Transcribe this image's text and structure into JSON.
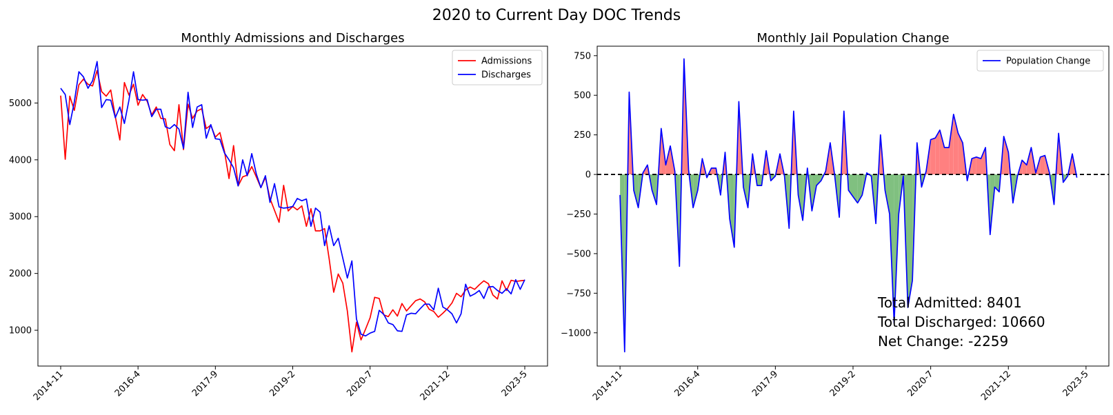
{
  "figure": {
    "title": "2020 to Current Day DOC Trends"
  },
  "chart_data": [
    {
      "type": "line",
      "title": "Monthly Admissions and Discharges",
      "xlabel": "",
      "ylabel": "",
      "legend_position": "top-right",
      "grid": false,
      "x_ticks": [
        "2014-11",
        "2016-4",
        "2017-9",
        "2019-2",
        "2020-7",
        "2021-12",
        "2023-5"
      ],
      "x_tick_positions": [
        0,
        17,
        34,
        51,
        68,
        85,
        102
      ],
      "x_range": [
        -5,
        107
      ],
      "y_ticks": [
        1000,
        2000,
        3000,
        4000,
        5000
      ],
      "y_range": [
        370,
        6000
      ],
      "series": [
        {
          "name": "Admissions",
          "color": "#ff0000",
          "values": [
            5130,
            4010,
            5120,
            4870,
            5320,
            5420,
            5330,
            5300,
            5570,
            5200,
            5120,
            5230,
            4760,
            4350,
            5360,
            5140,
            5330,
            4960,
            5150,
            5030,
            4790,
            4930,
            4730,
            4720,
            4270,
            4160,
            4970,
            4180,
            4980,
            4730,
            4860,
            4900,
            4550,
            4610,
            4400,
            4480,
            4150,
            3670,
            4250,
            3540,
            3700,
            3730,
            3880,
            3700,
            3510,
            3690,
            3320,
            3110,
            2900,
            3550,
            3100,
            3180,
            3120,
            3190,
            2830,
            3140,
            2750,
            2750,
            2790,
            2260,
            1670,
            1990,
            1830,
            1340,
            620,
            1140,
            830,
            1020,
            1220,
            1580,
            1560,
            1270,
            1240,
            1360,
            1250,
            1470,
            1340,
            1430,
            1520,
            1550,
            1500,
            1370,
            1330,
            1230,
            1300,
            1380,
            1480,
            1650,
            1590,
            1710,
            1760,
            1720,
            1800,
            1870,
            1820,
            1620,
            1550,
            1870,
            1700,
            1880,
            1860,
            1870,
            1880
          ]
        },
        {
          "name": "Discharges",
          "color": "#0000ff",
          "values": [
            5260,
            5150,
            4620,
            5020,
            5550,
            5460,
            5260,
            5390,
            5730,
            4920,
            5060,
            5050,
            4740,
            4930,
            4640,
            5050,
            5550,
            5060,
            5050,
            5060,
            4760,
            4890,
            4890,
            4580,
            4550,
            4620,
            4540,
            4200,
            5190,
            4570,
            4930,
            4970,
            4380,
            4620,
            4370,
            4360,
            4120,
            4000,
            3860,
            3540,
            4000,
            3720,
            4110,
            3750,
            3510,
            3720,
            3250,
            3580,
            3170,
            3150,
            3160,
            3180,
            3320,
            3280,
            3310,
            2830,
            3150,
            3080,
            2490,
            2840,
            2490,
            2620,
            2270,
            1920,
            2220,
            1200,
            930,
            900,
            950,
            980,
            1350,
            1280,
            1130,
            1100,
            990,
            980,
            1270,
            1300,
            1290,
            1380,
            1460,
            1460,
            1360,
            1740,
            1410,
            1360,
            1290,
            1130,
            1290,
            1810,
            1600,
            1640,
            1700,
            1560,
            1760,
            1770,
            1700,
            1650,
            1730,
            1640,
            1890,
            1720,
            1890
          ]
        }
      ]
    },
    {
      "type": "area",
      "title": "Monthly Jail Population Change",
      "xlabel": "",
      "ylabel": "",
      "legend_position": "top-right",
      "grid": false,
      "x_ticks": [
        "2014-11",
        "2016-4",
        "2017-9",
        "2019-2",
        "2020-7",
        "2021-12",
        "2023-5"
      ],
      "x_tick_positions": [
        0,
        17,
        34,
        51,
        68,
        85,
        102
      ],
      "x_range": [
        -5,
        107
      ],
      "y_ticks": [
        -1000,
        -750,
        -500,
        -250,
        0,
        250,
        500,
        750
      ],
      "y_range": [
        -1210,
        810
      ],
      "baseline": 0,
      "positive_fill": "#ff8080",
      "negative_fill": "#80c080",
      "series": [
        {
          "name": "Population Change",
          "color": "#0000ff",
          "values": [
            -130,
            -1120,
            520,
            -100,
            -210,
            10,
            60,
            -100,
            -190,
            290,
            60,
            180,
            20,
            -580,
            730,
            30,
            -210,
            -100,
            100,
            -20,
            40,
            40,
            -130,
            140,
            -280,
            -460,
            460,
            -80,
            -210,
            130,
            -70,
            -70,
            150,
            -40,
            -10,
            130,
            -10,
            -340,
            400,
            -130,
            -290,
            40,
            -230,
            -70,
            -40,
            20,
            200,
            -10,
            -270,
            400,
            -100,
            -140,
            -180,
            -130,
            10,
            -10,
            -310,
            250,
            -100,
            -250,
            -940,
            -250,
            -10,
            -840,
            -670,
            200,
            -80,
            20,
            220,
            230,
            280,
            170,
            170,
            380,
            260,
            200,
            -40,
            100,
            110,
            100,
            170,
            -380,
            -80,
            -110,
            240,
            140,
            -180,
            -10,
            90,
            60,
            170,
            10,
            110,
            120,
            10,
            -190,
            260,
            -50,
            -10,
            130,
            -20
          ]
        }
      ],
      "annotations": [
        "Total Admitted: 8401",
        "Total Discharged: 10660",
        "Net Change: -2259"
      ]
    }
  ]
}
